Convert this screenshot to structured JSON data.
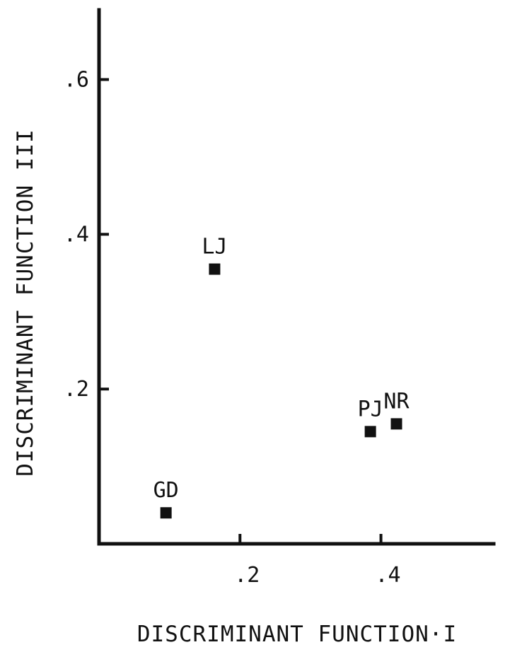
{
  "chart_data": {
    "type": "scatter",
    "title": "",
    "xlabel": "DISCRIMINANT FUNCTION·I",
    "ylabel": "DISCRIMINANT FUNCTION III",
    "xlim": [
      0,
      0.56
    ],
    "ylim": [
      0,
      0.69
    ],
    "x_ticks": [
      {
        "value": 0.2,
        "label": ".2"
      },
      {
        "value": 0.4,
        "label": ".4"
      }
    ],
    "y_ticks": [
      {
        "value": 0.2,
        "label": ".2"
      },
      {
        "value": 0.4,
        "label": ".4"
      },
      {
        "value": 0.6,
        "label": ".6"
      }
    ],
    "grid": false,
    "points": [
      {
        "label": "GD",
        "x": 0.095,
        "y": 0.04
      },
      {
        "label": "LJ",
        "x": 0.164,
        "y": 0.355
      },
      {
        "label": "PJ",
        "x": 0.385,
        "y": 0.145
      },
      {
        "label": "NR",
        "x": 0.422,
        "y": 0.155
      }
    ]
  }
}
